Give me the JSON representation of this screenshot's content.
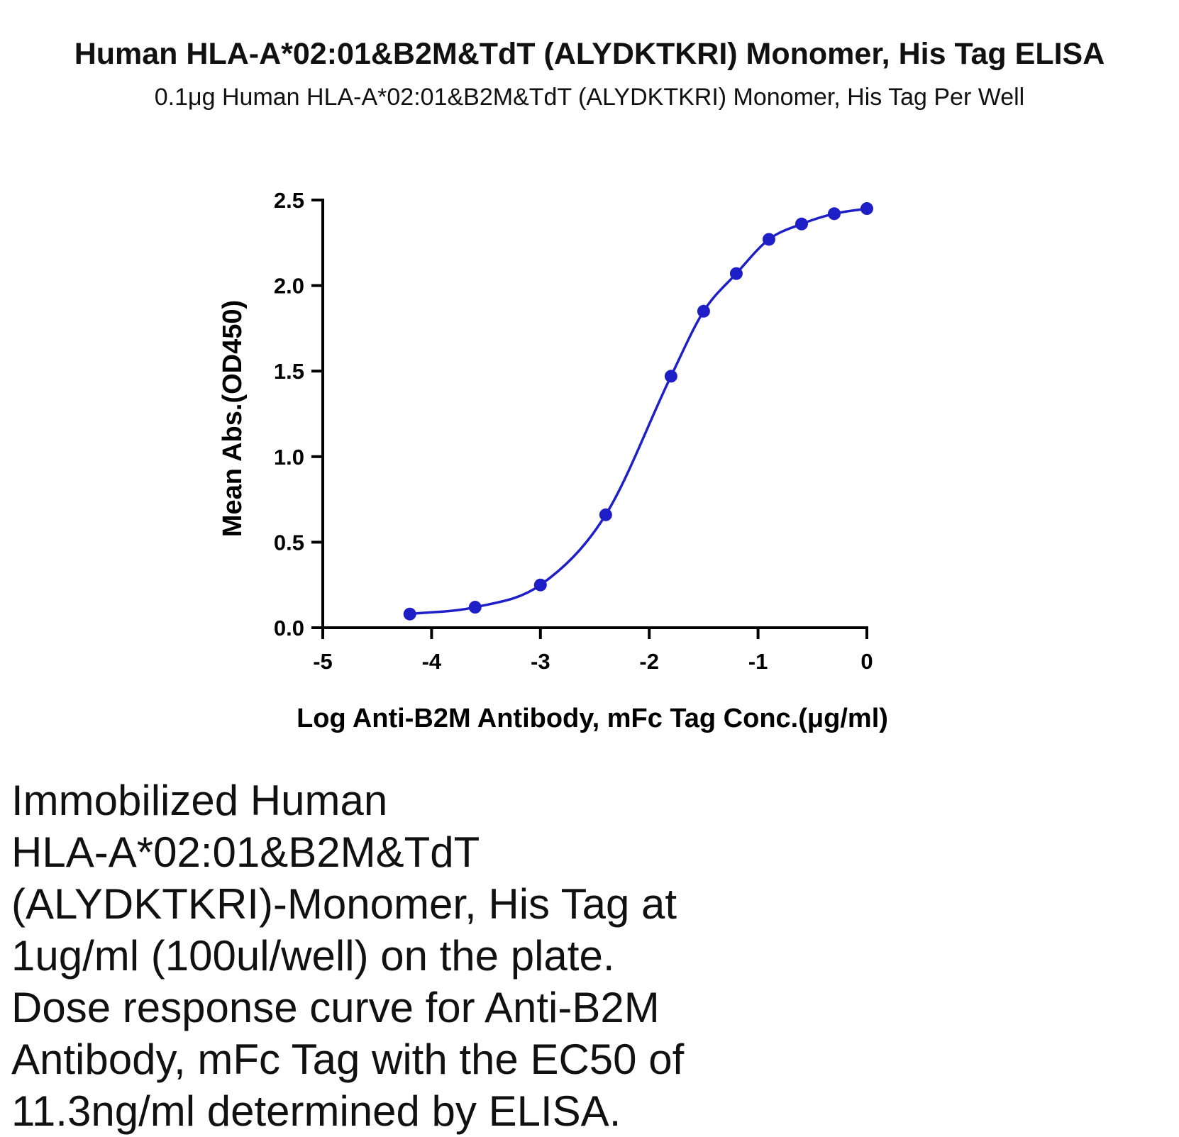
{
  "chart_data": {
    "type": "line",
    "title": "Human HLA-A*02:01&B2M&TdT (ALYDKTKRI) Monomer, His Tag ELISA",
    "subtitle": "0.1μg Human HLA-A*02:01&B2M&TdT (ALYDKTKRI) Monomer, His Tag Per Well",
    "xlabel": "Log Anti-B2M Antibody, mFc Tag Conc.(μg/ml)",
    "ylabel": "Mean Abs.(OD450)",
    "xlim": [
      -5,
      0
    ],
    "ylim": [
      0,
      2.5
    ],
    "x_ticks": [
      -5,
      -4,
      -3,
      -2,
      -1,
      0
    ],
    "x_tick_labels": [
      "-5",
      "-4",
      "-3",
      "-2",
      "-1",
      "0"
    ],
    "y_ticks": [
      0,
      0.5,
      1.0,
      1.5,
      2.0,
      2.5
    ],
    "y_tick_labels": [
      "0.0",
      "0.5",
      "1.0",
      "1.5",
      "2.0",
      "2.5"
    ],
    "grid": false,
    "series": [
      {
        "color": "#1f1fc8",
        "x": [
          -4.2,
          -3.6,
          -3.0,
          -2.4,
          -1.8,
          -1.5,
          -1.2,
          -0.9,
          -0.6,
          -0.3,
          0.0
        ],
        "y": [
          0.08,
          0.12,
          0.25,
          0.66,
          1.47,
          1.85,
          2.07,
          2.27,
          2.36,
          2.42,
          2.45
        ],
        "fit": "4PL"
      }
    ]
  },
  "caption": "Immobilized Human\nHLA-A*02:01&B2M&TdT\n(ALYDKTKRI)-Monomer, His Tag at\n1ug/ml (100ul/well) on the plate.\nDose response curve for Anti-B2M\nAntibody, mFc Tag with the EC50 of\n11.3ng/ml determined by ELISA."
}
